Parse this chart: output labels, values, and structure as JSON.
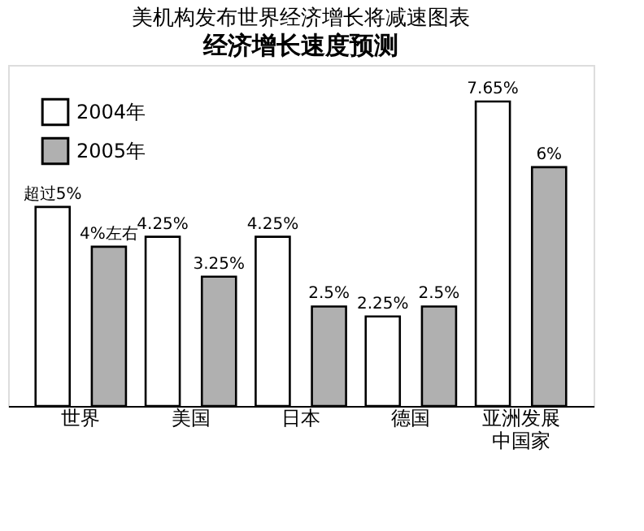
{
  "chart_data": {
    "type": "bar",
    "title": "美机构发布世界经济增长将减速图表",
    "subtitle": "经济增长速度预测",
    "categories": [
      "世界",
      "美国",
      "日本",
      "德国",
      "亚洲发展中国家"
    ],
    "series": [
      {
        "name": "2004年",
        "color": "#ffffff",
        "values": [
          5,
          4.25,
          4.25,
          2.25,
          7.65
        ],
        "value_labels": [
          "超过5%",
          "4.25%",
          "4.25%",
          "2.25%",
          "7.65%"
        ]
      },
      {
        "name": "2005年",
        "color": "#b0b0b0",
        "values": [
          4,
          3.25,
          2.5,
          2.5,
          6
        ],
        "value_labels": [
          "4%左右",
          "3.25%",
          "2.5%",
          "2.5%",
          "6%"
        ]
      }
    ],
    "legend": "top left",
    "grid": false
  }
}
